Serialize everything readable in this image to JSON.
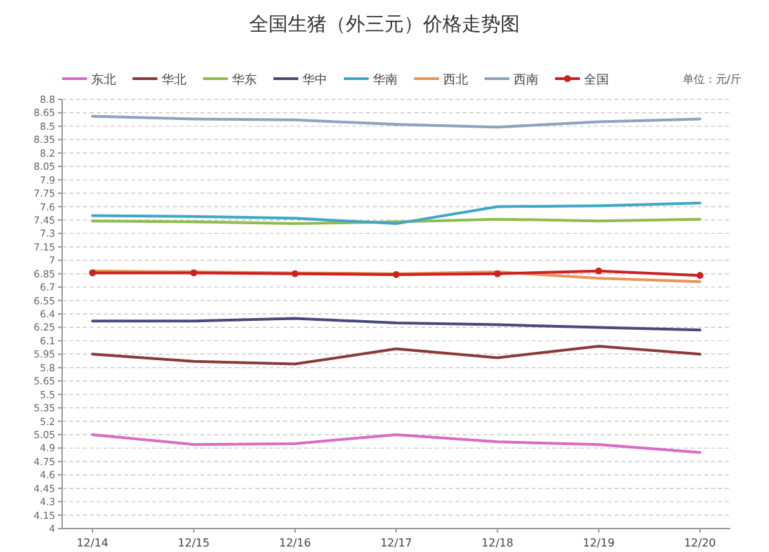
{
  "chart_data": {
    "type": "line",
    "title": "全国生猪（外三元）价格走势图",
    "annotations": [
      "单位：元/斤"
    ],
    "categories": [
      "12/14",
      "12/15",
      "12/16",
      "12/17",
      "12/18",
      "12/19",
      "12/20"
    ],
    "series": [
      {
        "name": "东北",
        "color": "#d96cc4",
        "values": [
          5.05,
          4.94,
          4.95,
          5.05,
          4.97,
          4.94,
          4.85
        ]
      },
      {
        "name": "华北",
        "color": "#8b3a3a",
        "values": [
          5.95,
          5.87,
          5.84,
          6.01,
          5.91,
          6.04,
          5.95
        ]
      },
      {
        "name": "华东",
        "color": "#8fbc4f",
        "values": [
          7.44,
          7.43,
          7.41,
          7.43,
          7.46,
          7.44,
          7.46
        ]
      },
      {
        "name": "华中",
        "color": "#4a4a7a",
        "values": [
          6.32,
          6.32,
          6.35,
          6.3,
          6.28,
          6.25,
          6.22
        ]
      },
      {
        "name": "华南",
        "color": "#3fa7c4",
        "values": [
          7.5,
          7.49,
          7.47,
          7.41,
          7.6,
          7.61,
          7.64
        ]
      },
      {
        "name": "西北",
        "color": "#e8955a",
        "values": [
          6.88,
          6.87,
          6.86,
          6.85,
          6.87,
          6.8,
          6.76
        ]
      },
      {
        "name": "西南",
        "color": "#8fa2bf",
        "values": [
          8.61,
          8.58,
          8.57,
          8.52,
          8.49,
          8.55,
          8.58
        ]
      },
      {
        "name": "全国",
        "color": "#cc2222",
        "marker": "circle",
        "values": [
          6.86,
          6.86,
          6.85,
          6.84,
          6.85,
          6.88,
          6.83
        ]
      }
    ],
    "ylim": [
      4,
      8.8
    ],
    "yticks": [
      4,
      4.15,
      4.3,
      4.45,
      4.6,
      4.75,
      4.9,
      5.05,
      5.2,
      5.35,
      5.5,
      5.65,
      5.8,
      5.95,
      6.1,
      6.25,
      6.4,
      6.55,
      6.7,
      6.85,
      7,
      7.15,
      7.3,
      7.45,
      7.6,
      7.75,
      7.9,
      8.05,
      8.2,
      8.35,
      8.5,
      8.65,
      8.8
    ],
    "grid": "y",
    "legend": "top",
    "marker": "none",
    "line_style": "solid"
  }
}
